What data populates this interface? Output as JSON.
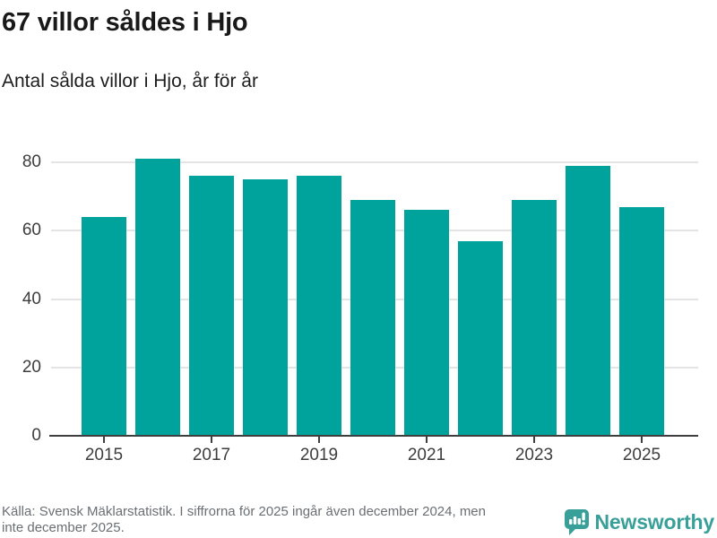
{
  "header": {
    "title": "67 villor såldes i Hjo",
    "subtitle": "Antal sålda villor i Hjo, år för år"
  },
  "chart_data": {
    "type": "bar",
    "title": "67 villor såldes i Hjo",
    "subtitle": "Antal sålda villor i Hjo, år för år",
    "categories": [
      "2015",
      "2016",
      "2017",
      "2018",
      "2019",
      "2020",
      "2021",
      "2022",
      "2023",
      "2024",
      "2025"
    ],
    "values": [
      64,
      81,
      76,
      75,
      76,
      69,
      66,
      57,
      69,
      79,
      67
    ],
    "xlabel": "",
    "ylabel": "",
    "ylim": [
      0,
      85
    ],
    "yticks": [
      0,
      20,
      40,
      60,
      80
    ],
    "xtick_labels": [
      "2015",
      "2017",
      "2019",
      "2021",
      "2023",
      "2025"
    ],
    "grid": true,
    "legend": "none",
    "bar_color": "#00a39b",
    "gridline_color": "#e4e4e4",
    "axis_color": "#3e3e3e",
    "tick_label_color": "#3d3d3d"
  },
  "footer": {
    "source_line1": "Källa: Svensk Mäklarstatistik. I siffrorna för 2025 ingår även december 2024, men",
    "source_line2": "inte december 2025.",
    "brand": "Newsworthy",
    "brand_color": "#38a098"
  }
}
